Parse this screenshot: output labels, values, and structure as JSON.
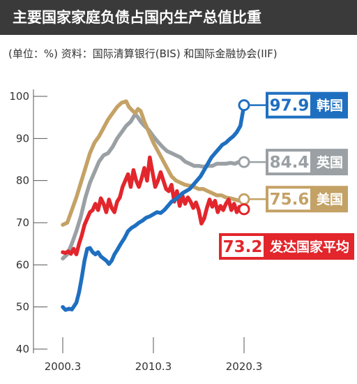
{
  "title": "主要国家家庭负债占国内生产总值比重",
  "subtitle": "(单位：%) 资料：国际清算银行(BIS) 和国际金融协会(IIF)",
  "colors": {
    "korea": "#1f6fc0",
    "uk": "#9aa0a4",
    "usa": "#c4a266",
    "developed": "#e2262c",
    "title_bg": "#3a3a3a"
  },
  "chart_data": {
    "type": "line",
    "title": "主要国家家庭负债占国内生产总值比重",
    "subtitle": "(单位：%) 资料：国际清算银行(BIS) 和国际金融协会(IIF)",
    "x_tick_labels": [
      "2000.3",
      "2010.3",
      "2020.3"
    ],
    "x_ticks": [
      2000.0,
      2010.0,
      2020.0
    ],
    "xlim": [
      2000.0,
      2020.0
    ],
    "y_ticks": [
      40,
      50,
      60,
      70,
      80,
      90,
      100
    ],
    "ylim": [
      40,
      100
    ],
    "grid": false,
    "series": [
      {
        "name": "韩国",
        "key": "korea",
        "end_label": "97.9",
        "points": [
          [
            2000.0,
            50
          ],
          [
            2000.3,
            49.3
          ],
          [
            2000.7,
            49.6
          ],
          [
            2001.0,
            49.4
          ],
          [
            2001.5,
            51
          ],
          [
            2001.8,
            53.5
          ],
          [
            2002.1,
            57
          ],
          [
            2002.4,
            61
          ],
          [
            2002.7,
            63.8
          ],
          [
            2003.0,
            64
          ],
          [
            2003.3,
            63
          ],
          [
            2003.6,
            62.5
          ],
          [
            2003.9,
            63
          ],
          [
            2004.2,
            62
          ],
          [
            2004.5,
            61.5
          ],
          [
            2004.8,
            61
          ],
          [
            2005.1,
            60.2
          ],
          [
            2005.4,
            61
          ],
          [
            2005.7,
            62.5
          ],
          [
            2006.0,
            63.5
          ],
          [
            2006.4,
            65
          ],
          [
            2006.8,
            66.3
          ],
          [
            2007.2,
            68
          ],
          [
            2007.6,
            68.8
          ],
          [
            2008.0,
            69.3
          ],
          [
            2008.4,
            70
          ],
          [
            2008.8,
            70.5
          ],
          [
            2009.2,
            71.2
          ],
          [
            2009.6,
            71.5
          ],
          [
            2010.0,
            72
          ],
          [
            2010.4,
            72.5
          ],
          [
            2010.8,
            72.3
          ],
          [
            2011.2,
            73
          ],
          [
            2011.6,
            74
          ],
          [
            2012.0,
            75
          ],
          [
            2012.4,
            75.5
          ],
          [
            2012.8,
            76.2
          ],
          [
            2013.2,
            77
          ],
          [
            2013.6,
            77.5
          ],
          [
            2014.0,
            78
          ],
          [
            2014.4,
            79
          ],
          [
            2014.8,
            80
          ],
          [
            2015.2,
            81
          ],
          [
            2015.6,
            82.5
          ],
          [
            2016.0,
            84
          ],
          [
            2016.4,
            85.5
          ],
          [
            2016.8,
            86.5
          ],
          [
            2017.2,
            87.5
          ],
          [
            2017.6,
            88.5
          ],
          [
            2018.0,
            89
          ],
          [
            2018.4,
            89.8
          ],
          [
            2018.8,
            90.5
          ],
          [
            2019.2,
            91.5
          ],
          [
            2019.6,
            93
          ],
          [
            2020.0,
            97.9
          ]
        ]
      },
      {
        "name": "英国",
        "key": "uk",
        "end_label": "84.4",
        "points": [
          [
            2000.0,
            61.5
          ],
          [
            2000.5,
            62.5
          ],
          [
            2001.0,
            65
          ],
          [
            2001.5,
            68
          ],
          [
            2002.0,
            71.5
          ],
          [
            2002.5,
            76
          ],
          [
            2003.0,
            79.5
          ],
          [
            2003.5,
            82
          ],
          [
            2004.0,
            84.5
          ],
          [
            2004.5,
            86
          ],
          [
            2005.0,
            86.5
          ],
          [
            2005.5,
            88
          ],
          [
            2006.0,
            90
          ],
          [
            2006.5,
            91.5
          ],
          [
            2007.0,
            93
          ],
          [
            2007.5,
            94
          ],
          [
            2008.0,
            95.8
          ],
          [
            2008.3,
            95
          ],
          [
            2008.6,
            94
          ],
          [
            2009.0,
            93
          ],
          [
            2009.5,
            92
          ],
          [
            2010.0,
            90.5
          ],
          [
            2010.5,
            89.2
          ],
          [
            2011.0,
            88
          ],
          [
            2011.5,
            87
          ],
          [
            2012.0,
            86.5
          ],
          [
            2012.5,
            86
          ],
          [
            2013.0,
            85.5
          ],
          [
            2013.5,
            84.5
          ],
          [
            2014.0,
            84
          ],
          [
            2014.5,
            83.5
          ],
          [
            2015.0,
            83.5
          ],
          [
            2015.5,
            83.3
          ],
          [
            2016.0,
            83.5
          ],
          [
            2016.5,
            83.5
          ],
          [
            2017.0,
            84
          ],
          [
            2017.5,
            84
          ],
          [
            2018.0,
            84
          ],
          [
            2018.5,
            84.2
          ],
          [
            2019.0,
            84
          ],
          [
            2019.5,
            84.5
          ],
          [
            2020.0,
            84.4
          ]
        ]
      },
      {
        "name": "美国",
        "key": "usa",
        "end_label": "75.6",
        "points": [
          [
            2000.0,
            69.5
          ],
          [
            2000.5,
            70
          ],
          [
            2001.0,
            73
          ],
          [
            2001.5,
            76
          ],
          [
            2002.0,
            79.5
          ],
          [
            2002.5,
            83
          ],
          [
            2003.0,
            86.5
          ],
          [
            2003.5,
            89
          ],
          [
            2004.0,
            90.5
          ],
          [
            2004.5,
            92.5
          ],
          [
            2005.0,
            94.5
          ],
          [
            2005.5,
            96
          ],
          [
            2006.0,
            97.5
          ],
          [
            2006.5,
            98.5
          ],
          [
            2007.0,
            98.8
          ],
          [
            2007.3,
            97.5
          ],
          [
            2007.6,
            96.8
          ],
          [
            2008.0,
            96
          ],
          [
            2008.3,
            97
          ],
          [
            2008.6,
            96.5
          ],
          [
            2009.0,
            94
          ],
          [
            2009.5,
            91.5
          ],
          [
            2010.0,
            89
          ],
          [
            2010.5,
            87
          ],
          [
            2011.0,
            85
          ],
          [
            2011.5,
            83
          ],
          [
            2012.0,
            81
          ],
          [
            2012.5,
            80
          ],
          [
            2013.0,
            79.5
          ],
          [
            2013.5,
            79
          ],
          [
            2014.0,
            78.8
          ],
          [
            2014.5,
            78.5
          ],
          [
            2015.0,
            78
          ],
          [
            2015.5,
            78
          ],
          [
            2016.0,
            77.5
          ],
          [
            2016.5,
            77
          ],
          [
            2017.0,
            76.5
          ],
          [
            2017.5,
            76.5
          ],
          [
            2018.0,
            76
          ],
          [
            2018.5,
            75.8
          ],
          [
            2019.0,
            75.5
          ],
          [
            2019.5,
            75.2
          ],
          [
            2020.0,
            75.6
          ]
        ]
      },
      {
        "name": "发达国家平均",
        "key": "developed",
        "end_label": "73.2",
        "points": [
          [
            2000.0,
            63
          ],
          [
            2000.3,
            62.8
          ],
          [
            2000.6,
            63.2
          ],
          [
            2000.9,
            62.6
          ],
          [
            2001.2,
            63.8
          ],
          [
            2001.5,
            62.5
          ],
          [
            2001.8,
            65
          ],
          [
            2002.1,
            67
          ],
          [
            2002.4,
            69.5
          ],
          [
            2002.7,
            71
          ],
          [
            2003.0,
            72.5
          ],
          [
            2003.3,
            73
          ],
          [
            2003.6,
            74.5
          ],
          [
            2003.9,
            73
          ],
          [
            2004.2,
            75.8
          ],
          [
            2004.5,
            74.5
          ],
          [
            2004.8,
            72.5
          ],
          [
            2005.1,
            75.5
          ],
          [
            2005.4,
            73.5
          ],
          [
            2005.7,
            72.5
          ],
          [
            2006.0,
            75
          ],
          [
            2006.3,
            76
          ],
          [
            2006.6,
            78.5
          ],
          [
            2006.9,
            80
          ],
          [
            2007.2,
            81.5
          ],
          [
            2007.5,
            78.5
          ],
          [
            2007.8,
            82.5
          ],
          [
            2008.1,
            80
          ],
          [
            2008.4,
            78.5
          ],
          [
            2008.7,
            80.5
          ],
          [
            2009.0,
            83
          ],
          [
            2009.3,
            80
          ],
          [
            2009.6,
            85.5
          ],
          [
            2009.9,
            82
          ],
          [
            2010.2,
            78.5
          ],
          [
            2010.5,
            80
          ],
          [
            2010.8,
            82
          ],
          [
            2011.1,
            80
          ],
          [
            2011.4,
            78
          ],
          [
            2011.7,
            77.5
          ],
          [
            2012.0,
            79
          ],
          [
            2012.3,
            75
          ],
          [
            2012.6,
            77.5
          ],
          [
            2012.9,
            74
          ],
          [
            2013.2,
            76.5
          ],
          [
            2013.5,
            74.5
          ],
          [
            2013.8,
            76
          ],
          [
            2014.1,
            75
          ],
          [
            2014.4,
            73.5
          ],
          [
            2014.7,
            74.8
          ],
          [
            2015.0,
            73
          ],
          [
            2015.3,
            69.8
          ],
          [
            2015.6,
            71
          ],
          [
            2015.9,
            73.5
          ],
          [
            2016.2,
            75.5
          ],
          [
            2016.5,
            73.8
          ],
          [
            2016.8,
            75.2
          ],
          [
            2017.1,
            72.5
          ],
          [
            2017.4,
            74
          ],
          [
            2017.7,
            73
          ],
          [
            2018.0,
            74.5
          ],
          [
            2018.3,
            75.5
          ],
          [
            2018.6,
            73
          ],
          [
            2018.9,
            74.5
          ],
          [
            2019.2,
            72.5
          ],
          [
            2019.5,
            73.8
          ],
          [
            2020.0,
            73.2
          ]
        ]
      }
    ]
  }
}
